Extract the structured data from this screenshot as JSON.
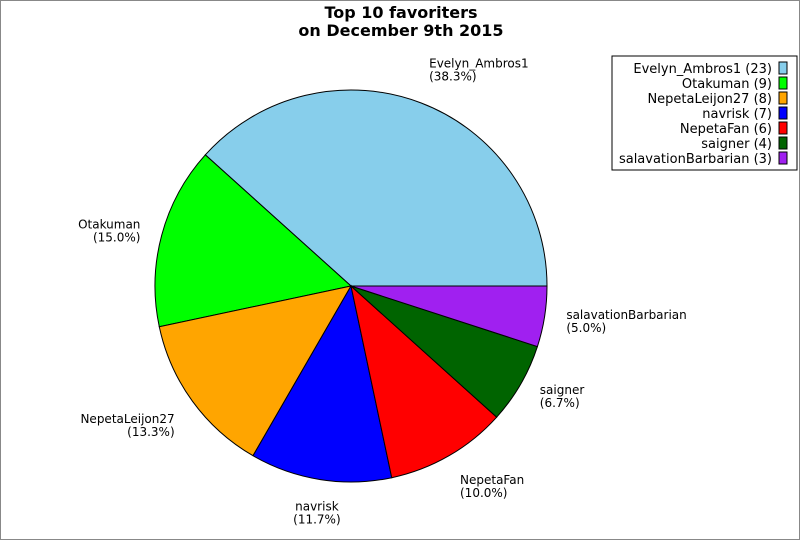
{
  "chart_data": {
    "type": "pie",
    "title": [
      "Top 10 favoriters",
      "on December 9th 2015"
    ],
    "start_angle_deg": 0,
    "direction": "counterclockwise",
    "legend_placement": "top-right",
    "slices": [
      {
        "label": "Evelyn_Ambros1",
        "value": 23,
        "percent": "(38.3%)",
        "legend": "Evelyn_Ambros1 (23)",
        "color": "#87CEEB"
      },
      {
        "label": "Otakuman",
        "value": 9,
        "percent": "(15.0%)",
        "legend": "Otakuman (9)",
        "color": "#00FF00"
      },
      {
        "label": "NepetaLeijon27",
        "value": 8,
        "percent": "(13.3%)",
        "legend": "NepetaLeijon27 (8)",
        "color": "#FFA500"
      },
      {
        "label": "navrisk",
        "value": 7,
        "percent": "(11.7%)",
        "legend": "navrisk (7)",
        "color": "#0000FF"
      },
      {
        "label": "NepetaFan",
        "value": 6,
        "percent": "(10.0%)",
        "legend": "NepetaFan (6)",
        "color": "#FF0000"
      },
      {
        "label": "saigner",
        "value": 4,
        "percent": "(6.7%)",
        "legend": "saigner (4)",
        "color": "#006400"
      },
      {
        "label": "salavationBarbarian",
        "value": 3,
        "percent": "(5.0%)",
        "legend": "salavationBarbarian (3)",
        "color": "#A020F0"
      }
    ]
  }
}
